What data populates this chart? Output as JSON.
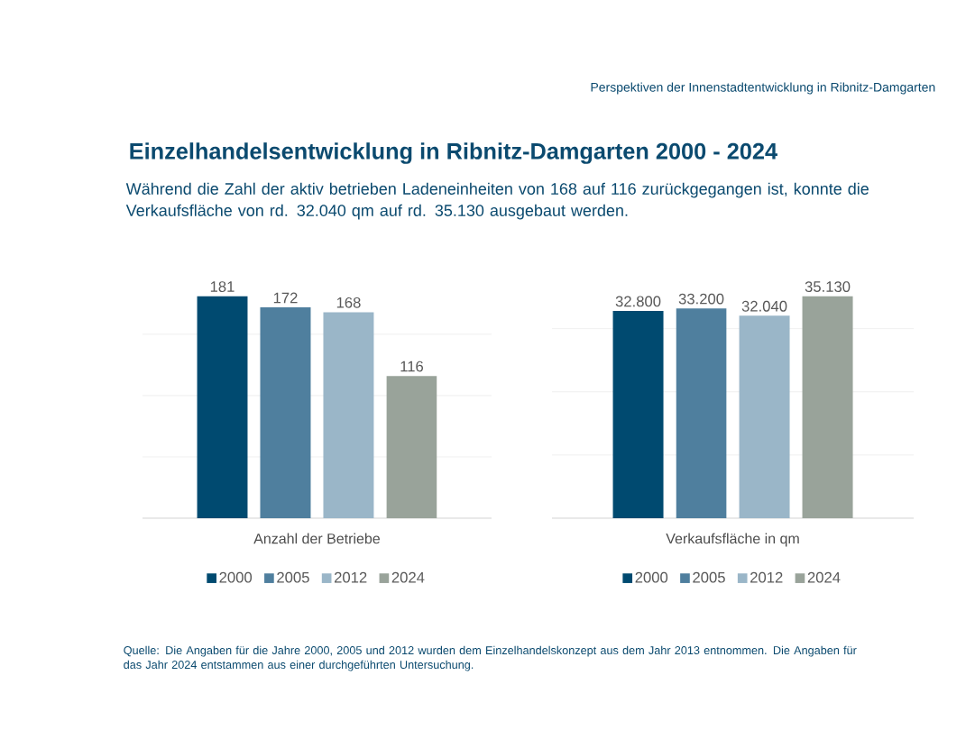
{
  "chart_data": [
    {
      "type": "bar",
      "title": "Einzelhandelsentwicklung in Ribnitz-Damgarten 2000 - 2024",
      "subtitle": "Während die Zahl der aktiv betrieben Ladeneinheiten von 168 auf 116 zurückgegangen ist, konnte die Verkaufsfläche von rd. 32.040 qm auf rd. 35.130 ausgebaut werden.",
      "annotations": [
        "Perspektiven der Innenstadtentwicklung in Ribnitz-Damgarten",
        "Quelle: Die Angaben für die Jahre 2000, 2005 und 2012 wurden dem Einzelhandelskonzept aus dem Jahr 2013 entnommen. Die Angaben für das Jahr 2024 entstammen aus einer durchgeführten Untersuchung."
      ],
      "xlabel": "Anzahl der Betriebe",
      "categories": [
        null
      ],
      "series": [
        {
          "name": "2000",
          "color": "#004a70",
          "values": [
            181
          ]
        },
        {
          "name": "2005",
          "color": "#4f7f9e",
          "values": [
            172
          ]
        },
        {
          "name": "2012",
          "color": "#9ab6c8",
          "values": [
            168
          ]
        },
        {
          "name": "2024",
          "color": "#99a39a",
          "values": [
            116
          ]
        }
      ],
      "grid": "y",
      "legend": "bottom",
      "data_labels": true
    },
    {
      "type": "bar",
      "xlabel": "Verkaufsfläche in qm",
      "categories": [
        null
      ],
      "series": [
        {
          "name": "2000",
          "color": "#004a70",
          "values": [
            32800
          ],
          "value_labels": [
            "32.800"
          ]
        },
        {
          "name": "2005",
          "color": "#4f7f9e",
          "values": [
            33200
          ],
          "value_labels": [
            "33.200"
          ]
        },
        {
          "name": "2012",
          "color": "#9ab6c8",
          "values": [
            32040
          ],
          "value_labels": [
            "32.040"
          ]
        },
        {
          "name": "2024",
          "color": "#99a39a",
          "values": [
            35130
          ],
          "value_labels": [
            "35.130"
          ]
        }
      ],
      "grid": "y",
      "legend": "bottom"
    }
  ]
}
